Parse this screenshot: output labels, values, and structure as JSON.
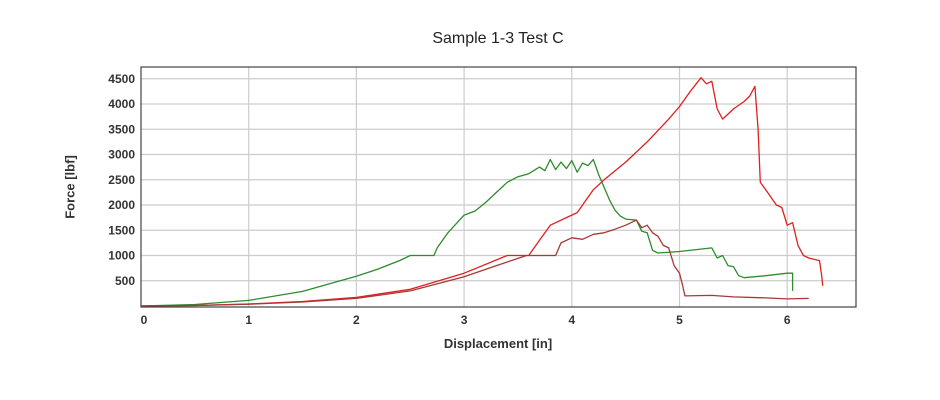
{
  "chart_data": {
    "type": "line",
    "title": "Sample 1-3 Test C",
    "xlabel": "Displacement [in]",
    "ylabel": "Force [lbf]",
    "xlim": [
      0,
      6.4
    ],
    "ylim": [
      0,
      4750
    ],
    "xticks": [
      0,
      1,
      2,
      3,
      4,
      5,
      6
    ],
    "yticks": [
      500,
      1000,
      1500,
      2000,
      2500,
      3000,
      3500,
      4000,
      4500
    ],
    "grid": true,
    "legend": null,
    "series": [
      {
        "name": "green",
        "color": "#2e8b2e",
        "x": [
          0,
          0.5,
          1.0,
          1.5,
          1.8,
          2.0,
          2.2,
          2.4,
          2.5,
          2.72,
          2.75,
          2.85,
          3.0,
          3.1,
          3.2,
          3.3,
          3.4,
          3.5,
          3.6,
          3.7,
          3.75,
          3.8,
          3.85,
          3.9,
          3.95,
          4.0,
          4.05,
          4.1,
          4.15,
          4.2,
          4.25,
          4.3,
          4.35,
          4.4,
          4.45,
          4.5,
          4.6,
          4.65,
          4.7,
          4.75,
          4.8,
          5.0,
          5.3,
          5.35,
          5.4,
          5.45,
          5.5,
          5.55,
          5.6,
          5.8,
          6.0,
          6.05,
          6.05
        ],
        "y": [
          0,
          30,
          110,
          290,
          470,
          590,
          730,
          900,
          1000,
          1000,
          1150,
          1450,
          1800,
          1880,
          2050,
          2250,
          2450,
          2560,
          2620,
          2750,
          2680,
          2900,
          2700,
          2850,
          2720,
          2880,
          2650,
          2830,
          2780,
          2900,
          2600,
          2350,
          2100,
          1900,
          1780,
          1720,
          1700,
          1480,
          1450,
          1100,
          1050,
          1080,
          1150,
          950,
          1000,
          800,
          780,
          600,
          560,
          600,
          650,
          650,
          300
        ]
      },
      {
        "name": "red",
        "color": "#e02020",
        "x": [
          0,
          0.5,
          1.0,
          1.5,
          2.0,
          2.5,
          3.0,
          3.4,
          3.6,
          3.7,
          3.8,
          3.95,
          4.05,
          4.2,
          4.3,
          4.5,
          4.7,
          4.9,
          5.0,
          5.1,
          5.2,
          5.25,
          5.3,
          5.35,
          5.4,
          5.45,
          5.5,
          5.6,
          5.65,
          5.7,
          5.73,
          5.75,
          5.8,
          5.9,
          5.95,
          6.0,
          6.05,
          6.1,
          6.15,
          6.2,
          6.3,
          6.32,
          6.33
        ],
        "y": [
          0,
          10,
          40,
          90,
          170,
          330,
          650,
          1000,
          1000,
          1300,
          1600,
          1750,
          1850,
          2300,
          2500,
          2850,
          3250,
          3700,
          3950,
          4250,
          4520,
          4400,
          4450,
          3900,
          3700,
          3800,
          3900,
          4050,
          4150,
          4350,
          3500,
          2450,
          2300,
          2000,
          1950,
          1600,
          1650,
          1200,
          1000,
          950,
          900,
          600,
          400
        ]
      },
      {
        "name": "dark red",
        "color": "#a83838",
        "x": [
          0,
          0.5,
          1.0,
          1.5,
          2.0,
          2.5,
          3.0,
          3.3,
          3.58,
          3.85,
          3.9,
          4.0,
          4.1,
          4.2,
          4.3,
          4.4,
          4.5,
          4.6,
          4.65,
          4.7,
          4.75,
          4.8,
          4.85,
          4.9,
          4.95,
          5.0,
          5.03,
          5.05,
          5.3,
          5.5,
          5.8,
          6.0,
          6.2
        ],
        "y": [
          0,
          10,
          35,
          80,
          150,
          300,
          580,
          800,
          1000,
          1000,
          1250,
          1350,
          1320,
          1420,
          1450,
          1520,
          1600,
          1700,
          1550,
          1600,
          1450,
          1380,
          1200,
          1150,
          800,
          650,
          400,
          200,
          210,
          180,
          160,
          140,
          150
        ]
      }
    ]
  }
}
